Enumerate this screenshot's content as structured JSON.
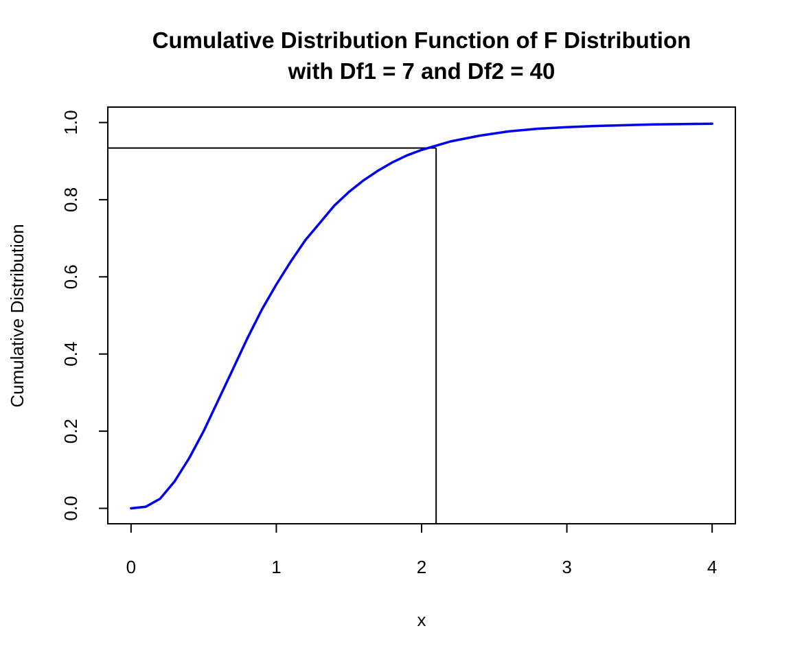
{
  "chart_data": {
    "type": "line",
    "title_line1": "Cumulative Distribution Function of F Distribution",
    "title_line2": "with Df1 = 7 and Df2 = 40",
    "xlabel": "x",
    "ylabel": "Cumulative Distribution",
    "xlim": [
      -0.16,
      4.16
    ],
    "ylim": [
      -0.04,
      1.04
    ],
    "x_ticks": [
      0,
      1,
      2,
      3,
      4
    ],
    "x_tick_labels": [
      "0",
      "1",
      "2",
      "3",
      "4"
    ],
    "y_ticks": [
      0.0,
      0.2,
      0.4,
      0.6,
      0.8,
      1.0
    ],
    "y_tick_labels": [
      "0.0",
      "0.2",
      "0.4",
      "0.6",
      "0.8",
      "1.0"
    ],
    "grid": false,
    "series": [
      {
        "color": "#0000ee",
        "x": [
          0,
          0.1,
          0.2,
          0.3,
          0.4,
          0.5,
          0.6,
          0.7,
          0.8,
          0.9,
          1.0,
          1.1,
          1.2,
          1.3,
          1.4,
          1.5,
          1.6,
          1.7,
          1.8,
          1.9,
          2.0,
          2.1,
          2.2,
          2.4,
          2.6,
          2.8,
          3.0,
          3.2,
          3.4,
          3.6,
          3.8,
          4.0
        ],
        "y": [
          0.0,
          0.004,
          0.025,
          0.07,
          0.13,
          0.2,
          0.28,
          0.36,
          0.44,
          0.515,
          0.58,
          0.64,
          0.695,
          0.74,
          0.785,
          0.82,
          0.85,
          0.875,
          0.897,
          0.915,
          0.929,
          0.94,
          0.951,
          0.966,
          0.977,
          0.984,
          0.988,
          0.991,
          0.993,
          0.995,
          0.996,
          0.997
        ]
      }
    ],
    "reference_point": {
      "x": 2.1,
      "y": 0.934
    }
  }
}
